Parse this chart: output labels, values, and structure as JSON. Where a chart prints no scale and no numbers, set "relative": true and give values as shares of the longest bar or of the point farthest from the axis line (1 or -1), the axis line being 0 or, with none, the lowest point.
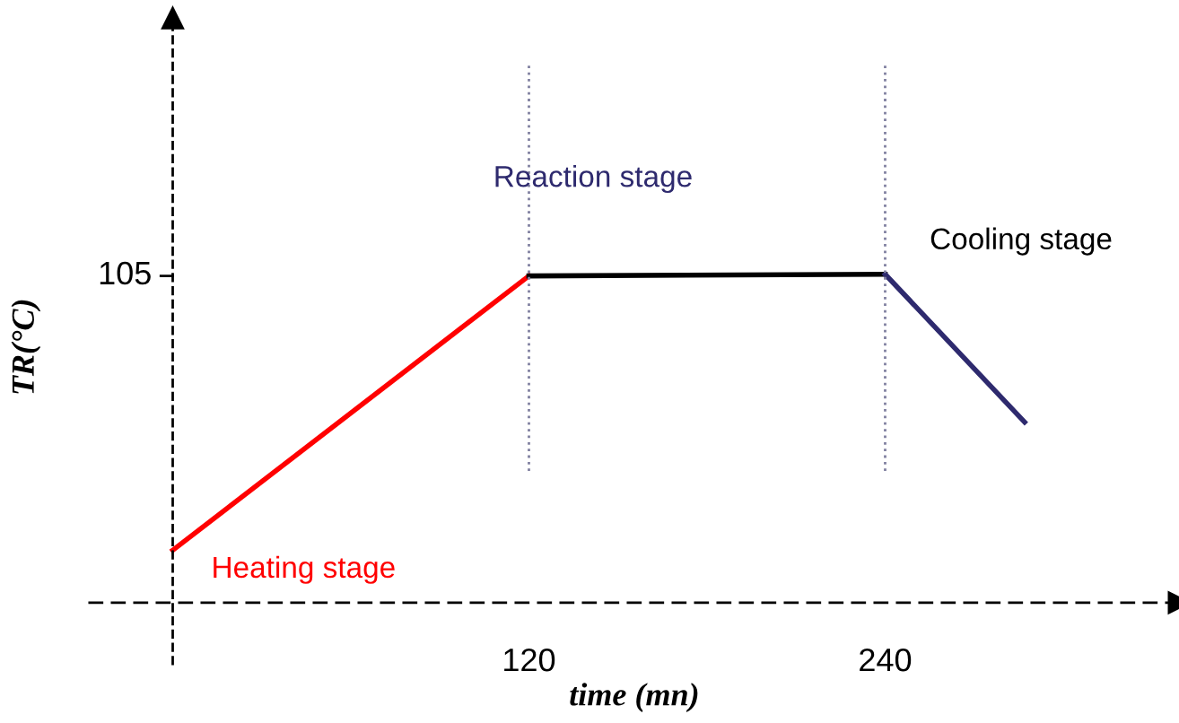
{
  "chart_data": {
    "type": "line",
    "relative": true,
    "xlabel": "time (mn)",
    "ylabel": "TR(°C)",
    "xlim": [
      -28,
      339
    ],
    "xticks": [
      120,
      240
    ],
    "series": [
      {
        "color": "#ff0000",
        "x": [
          0,
          120
        ],
        "values": [
          0.16,
          0.995
        ]
      },
      {
        "color": "#000000",
        "x": [
          120,
          240
        ],
        "values": [
          0.995,
          1
        ]
      },
      {
        "color": "#2e2a6e",
        "x": [
          240,
          287
        ],
        "values": [
          1,
          0.55
        ]
      }
    ],
    "ref_lines": [
      {
        "axis": "x",
        "value": 0,
        "color": "#000000",
        "line_style": "dashed"
      },
      {
        "axis": "x",
        "value": 120,
        "color": "#8080a0",
        "line_style": "dotted"
      },
      {
        "axis": "x",
        "value": 240,
        "color": "#8080a0",
        "line_style": "dotted"
      }
    ],
    "annotations": [
      "105",
      "Heating stage",
      "Reaction stage",
      "Cooling stage"
    ],
    "grid": false,
    "legend": false,
    "marker": "none",
    "line_style": "solid"
  }
}
